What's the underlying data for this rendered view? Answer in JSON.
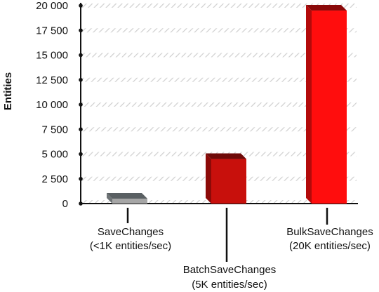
{
  "chart_data": {
    "type": "bar",
    "title": "",
    "xlabel": "",
    "ylabel": "Entities",
    "ylim": [
      0,
      20000
    ],
    "yticks": [
      0,
      2500,
      5000,
      7500,
      10000,
      12500,
      15000,
      17500,
      20000
    ],
    "ytick_labels": [
      "0",
      "2 500",
      "5 000",
      "7 500",
      "10 000",
      "12 500",
      "15 000",
      "17 500",
      "20 000"
    ],
    "categories": [
      [
        "SaveChanges",
        "(<1K entities/sec)"
      ],
      [
        "BatchSaveChanges",
        "(5K entities/sec)"
      ],
      [
        "BulkSaveChanges",
        "(20K entities/sec)"
      ]
    ],
    "values": [
      500,
      4500,
      19500
    ],
    "bar_colors": [
      {
        "front": "#a6a6a6",
        "side": "#6f7476",
        "top": "#5a6063"
      },
      {
        "front": "#c8100c",
        "side": "#8c0a08",
        "top": "#6e0a08"
      },
      {
        "front": "#ff0d0d",
        "side": "#b30a0a",
        "top": "#8a0a0a"
      }
    ],
    "grid": true,
    "legend": "none"
  }
}
